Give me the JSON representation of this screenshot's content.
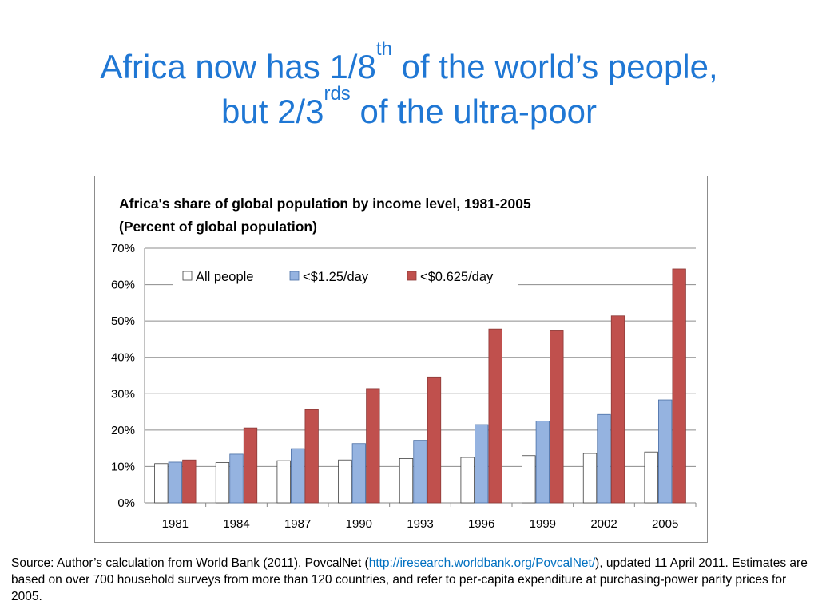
{
  "slide": {
    "title_part1": "Africa now has 1/8",
    "title_sup1": "th",
    "title_part2": " of the world’s people,",
    "title_part3": "but 2/3",
    "title_sup2": "rds",
    "title_part4": " of the ultra-poor"
  },
  "source": {
    "prefix": "Source:  Author’s calculation from World Bank (2011), PovcalNet  (",
    "link_text": "http://iresearch.worldbank.org/PovcalNet/",
    "suffix": "), updated 11 April 2011.  Estimates are based on over 700 household surveys from more than 120 countries, and refer to per-capita expenditure at purchasing-power parity prices for 2005."
  },
  "chart_data": {
    "type": "bar",
    "title": "Africa's share of global population  by income level, 1981-2005",
    "subtitle": "(Percent of global population)",
    "xlabel": "",
    "ylabel": "",
    "ylim": [
      0,
      70
    ],
    "yticks": [
      0,
      10,
      20,
      30,
      40,
      50,
      60,
      70
    ],
    "ytick_labels": [
      "0%",
      "10%",
      "20%",
      "30%",
      "40%",
      "50%",
      "60%",
      "70%"
    ],
    "grid": true,
    "legend_position": "top",
    "categories": [
      "1981",
      "1984",
      "1987",
      "1990",
      "1993",
      "1996",
      "1999",
      "2002",
      "2005"
    ],
    "series": [
      {
        "name": "All people",
        "color": "#ffffff",
        "values": [
          10.8,
          11.1,
          11.6,
          11.8,
          12.2,
          12.5,
          13.0,
          13.6,
          14.0
        ]
      },
      {
        "name": "<$1.25/day",
        "color": "#95b3e0",
        "values": [
          11.2,
          13.4,
          14.9,
          16.3,
          17.2,
          21.5,
          22.5,
          24.3,
          28.3
        ]
      },
      {
        "name": "<$0.625/day",
        "color": "#c0504d",
        "values": [
          11.8,
          20.6,
          25.6,
          31.4,
          34.6,
          47.8,
          47.3,
          51.4,
          64.3
        ]
      }
    ]
  }
}
